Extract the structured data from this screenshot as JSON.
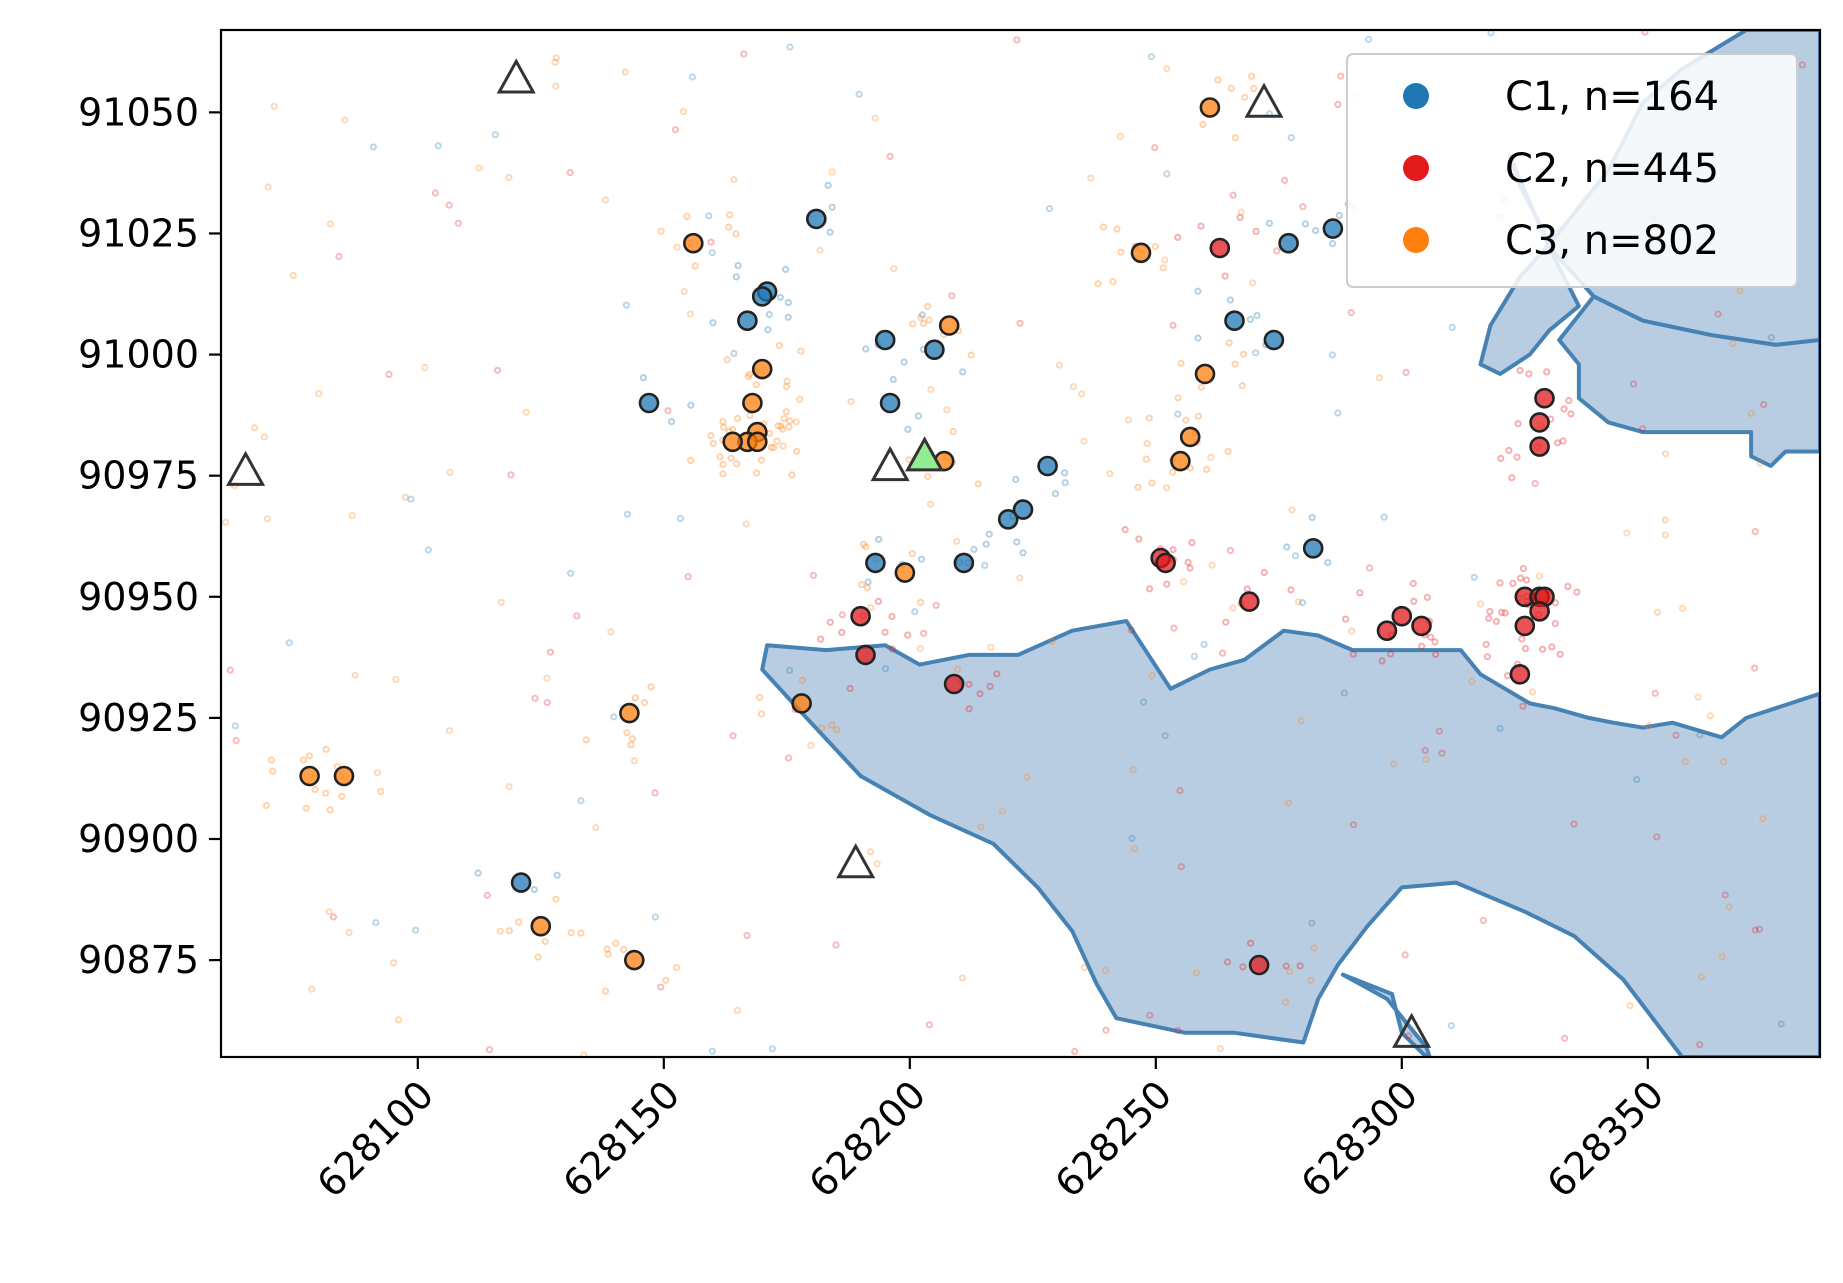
{
  "chart_data": {
    "type": "scatter",
    "title": "",
    "xlabel": "",
    "ylabel": "",
    "xlim": [
      628060,
      628385
    ],
    "ylim": [
      90855,
      91067
    ],
    "x_ticks": [
      628100,
      628150,
      628200,
      628250,
      628300,
      628350
    ],
    "x_tick_labels": [
      "628100",
      "628150",
      "628200",
      "628250",
      "628300",
      "628350"
    ],
    "y_ticks": [
      90875,
      90900,
      90925,
      90950,
      90975,
      91000,
      91025,
      91050
    ],
    "y_tick_labels": [
      "90875",
      "90900",
      "90925",
      "90950",
      "90975",
      "91000",
      "91025",
      "91050"
    ],
    "grid": false,
    "legend_position": "top-right",
    "colors": {
      "C1": "#1f77b4",
      "C2": "#e31a1c",
      "C3": "#ff7f0e",
      "water": "#b9cde2",
      "water_edge": "#4682b4",
      "highlight_triangle": "#90ee90"
    },
    "series": [
      {
        "name": "C1, n=164",
        "color": "#1f77b4",
        "highlighted": [
          [
            628181,
            91028
          ],
          [
            628171,
            91013
          ],
          [
            628170,
            91012
          ],
          [
            628167,
            91007
          ],
          [
            628195,
            91003
          ],
          [
            628205,
            91001
          ],
          [
            628147,
            90990
          ],
          [
            628196,
            90990
          ],
          [
            628228,
            90977
          ],
          [
            628223,
            90968
          ],
          [
            628220,
            90966
          ],
          [
            628193,
            90957
          ],
          [
            628211,
            90957
          ],
          [
            628282,
            90960
          ],
          [
            628121,
            90891
          ],
          [
            628277,
            91023
          ],
          [
            628286,
            91026
          ],
          [
            628266,
            91007
          ],
          [
            628274,
            91003
          ]
        ]
      },
      {
        "name": "C2, n=445",
        "color": "#e31a1c",
        "highlighted": [
          [
            628263,
            91022
          ],
          [
            628329,
            90991
          ],
          [
            628328,
            90986
          ],
          [
            628328,
            90981
          ],
          [
            628251,
            90958
          ],
          [
            628252,
            90957
          ],
          [
            628269,
            90949
          ],
          [
            628190,
            90946
          ],
          [
            628191,
            90938
          ],
          [
            628209,
            90932
          ],
          [
            628297,
            90943
          ],
          [
            628300,
            90946
          ],
          [
            628304,
            90944
          ],
          [
            628325,
            90950
          ],
          [
            628328,
            90950
          ],
          [
            628329,
            90950
          ],
          [
            628325,
            90944
          ],
          [
            628328,
            90947
          ],
          [
            628324,
            90934
          ],
          [
            628271,
            90874
          ]
        ]
      },
      {
        "name": "C3, n=802",
        "color": "#ff7f0e",
        "highlighted": [
          [
            628156,
            91023
          ],
          [
            628208,
            91006
          ],
          [
            628170,
            90997
          ],
          [
            628168,
            90990
          ],
          [
            628169,
            90984
          ],
          [
            628167,
            90982
          ],
          [
            628169,
            90982
          ],
          [
            628164,
            90982
          ],
          [
            628207,
            90978
          ],
          [
            628199,
            90955
          ],
          [
            628178,
            90928
          ],
          [
            628143,
            90926
          ],
          [
            628078,
            90913
          ],
          [
            628085,
            90913
          ],
          [
            628125,
            90882
          ],
          [
            628144,
            90875
          ],
          [
            628260,
            90996
          ],
          [
            628257,
            90983
          ],
          [
            628255,
            90978
          ],
          [
            628247,
            91021
          ],
          [
            628261,
            91051
          ]
        ]
      }
    ],
    "triangles": [
      {
        "x": 628120,
        "y": 91057,
        "highlighted": false
      },
      {
        "x": 628065,
        "y": 90976,
        "highlighted": false
      },
      {
        "x": 628272,
        "y": 91052,
        "highlighted": false
      },
      {
        "x": 628196,
        "y": 90977,
        "highlighted": false
      },
      {
        "x": 628203,
        "y": 90979,
        "highlighted": true
      },
      {
        "x": 628189,
        "y": 90895,
        "highlighted": false
      },
      {
        "x": 628302,
        "y": 90860,
        "highlighted": false
      }
    ],
    "water_areas": [
      [
        [
          628322,
          91041
        ],
        [
          628324,
          91035
        ],
        [
          628331,
          91021
        ],
        [
          628339,
          91012
        ],
        [
          628349,
          91007
        ],
        [
          628363,
          91004
        ],
        [
          628376,
          91002
        ],
        [
          628385,
          91003
        ],
        [
          628385,
          91067
        ],
        [
          628370,
          91067
        ],
        [
          628357,
          91059
        ],
        [
          628349,
          91052
        ],
        [
          628342,
          91038
        ],
        [
          628331,
          91024
        ],
        [
          628324,
          91016
        ],
        [
          628318,
          91006
        ],
        [
          628316,
          90998
        ],
        [
          628320,
          90996
        ],
        [
          628326,
          91000
        ],
        [
          628330,
          91005
        ],
        [
          628336,
          91010
        ],
        [
          628330,
          91022
        ],
        [
          628322,
          91041
        ]
      ],
      [
        [
          628332,
          91003
        ],
        [
          628336,
          90998
        ],
        [
          628336,
          90991
        ],
        [
          628342,
          90986
        ],
        [
          628349,
          90984
        ],
        [
          628358,
          90984
        ],
        [
          628368,
          90984
        ],
        [
          628371,
          90984
        ],
        [
          628371,
          90979
        ],
        [
          628375,
          90977
        ],
        [
          628378,
          90980
        ],
        [
          628385,
          90980
        ],
        [
          628385,
          91003
        ],
        [
          628376,
          91002
        ],
        [
          628363,
          91004
        ],
        [
          628349,
          91007
        ],
        [
          628339,
          91012
        ],
        [
          628332,
          91003
        ]
      ],
      [
        [
          628253,
          90931
        ],
        [
          628261,
          90935
        ],
        [
          628268,
          90937
        ],
        [
          628276,
          90943
        ],
        [
          628283,
          90942
        ],
        [
          628290,
          90939
        ],
        [
          628301,
          90939
        ],
        [
          628308,
          90939
        ],
        [
          628312,
          90939
        ],
        [
          628316,
          90934
        ],
        [
          628321,
          90931
        ],
        [
          628326,
          90928
        ],
        [
          628331,
          90927
        ],
        [
          628338,
          90925
        ],
        [
          628343,
          90924
        ],
        [
          628349,
          90923
        ],
        [
          628355,
          90924
        ],
        [
          628365,
          90921
        ],
        [
          628370,
          90925
        ],
        [
          628376,
          90927
        ],
        [
          628382,
          90929
        ],
        [
          628385,
          90930
        ],
        [
          628385,
          90855
        ],
        [
          628357,
          90855
        ],
        [
          628345,
          90871
        ],
        [
          628335,
          90880
        ],
        [
          628325,
          90885
        ],
        [
          628311,
          90891
        ],
        [
          628300,
          90890
        ],
        [
          628293,
          90882
        ],
        [
          628287,
          90874
        ],
        [
          628283,
          90867
        ],
        [
          628280,
          90858
        ],
        [
          628266,
          90860
        ],
        [
          628256,
          90860
        ],
        [
          628242,
          90863
        ],
        [
          628238,
          90870
        ],
        [
          628233,
          90881
        ],
        [
          628226,
          90890
        ],
        [
          628217,
          90899
        ],
        [
          628204,
          90905
        ],
        [
          628190,
          90913
        ],
        [
          628179,
          90925
        ],
        [
          628170,
          90935
        ],
        [
          628171,
          90940
        ],
        [
          628183,
          90939
        ],
        [
          628195,
          90940
        ],
        [
          628202,
          90936
        ],
        [
          628212,
          90938
        ],
        [
          628222,
          90938
        ],
        [
          628233,
          90943
        ],
        [
          628244,
          90945
        ],
        [
          628253,
          90931
        ]
      ],
      [
        [
          628288,
          90872
        ],
        [
          628297,
          90867
        ],
        [
          628305,
          90857
        ],
        [
          628306,
          90854
        ],
        [
          628300,
          90860
        ],
        [
          628298,
          90868
        ],
        [
          628288,
          90872
        ]
      ]
    ]
  }
}
